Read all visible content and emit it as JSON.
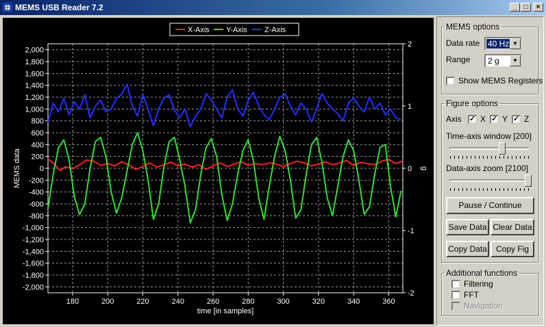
{
  "window": {
    "title": "MEMS USB Reader 7.2",
    "minimize": "_",
    "maximize": "□",
    "close": "×"
  },
  "mems_options": {
    "group_label": "MEMS options",
    "data_rate_label": "Data rate",
    "data_rate_value": "40 Hz",
    "range_label": "Range",
    "range_value": "2 g",
    "show_registers_label": "Show MEMS Registers",
    "show_registers_checked": false
  },
  "figure_options": {
    "group_label": "Figure options",
    "axis_label": "Axis",
    "x_label": "X",
    "y_label": "Y",
    "z_label": "Z",
    "x_checked": true,
    "y_checked": true,
    "z_checked": true,
    "time_window_label": "Time-axis window [200]",
    "time_window_value": 200,
    "zoom_label": "Data-axis zoom [2100]",
    "zoom_value": 2100,
    "pause_button": "Pause / Continue",
    "save_button": "Save Data",
    "clear_button": "Clear Data",
    "copy_data_button": "Copy Data",
    "copy_fig_button": "Copy Fig"
  },
  "additional": {
    "group_label": "Additional functions",
    "filtering_label": "Filtering",
    "fft_label": "FFT",
    "navigation_label": "Navigation"
  },
  "chart_data": {
    "type": "line",
    "xlabel": "time [in samples]",
    "ylabel": "MEMS data",
    "y2label": "g",
    "xlim": [
      166,
      368
    ],
    "ylim": [
      -2100,
      2100
    ],
    "y2lim": [
      -2,
      2
    ],
    "xticks": [
      180,
      200,
      220,
      240,
      260,
      280,
      300,
      320,
      340,
      360
    ],
    "yticks": [
      2000,
      1800,
      1600,
      1400,
      1200,
      1000,
      800,
      600,
      400,
      200,
      0,
      -200,
      -400,
      -600,
      -800,
      -1000,
      -1200,
      -1400,
      -1600,
      -1800,
      -2000
    ],
    "ytick_labels": [
      "2,000",
      "1,800",
      "1,600",
      "1,400",
      "1,200",
      "1,000",
      "800",
      "600",
      "400",
      "200",
      "0",
      "-200",
      "-400",
      "-600",
      "-800",
      "-1,000",
      "-1,200",
      "-1,400",
      "-1,600",
      "-1,800",
      "-2,000"
    ],
    "y2ticks": [
      2,
      1,
      0,
      -1,
      -2
    ],
    "grid": true,
    "legend_position": "top-center",
    "series": [
      {
        "name": "X-Axis",
        "color": "#ff2020",
        "x": [
          166,
          170,
          173,
          176,
          180,
          184,
          188,
          192,
          196,
          200,
          204,
          208,
          212,
          216,
          220,
          224,
          228,
          232,
          236,
          240,
          244,
          248,
          252,
          256,
          260,
          264,
          268,
          272,
          276,
          280,
          284,
          288,
          292,
          296,
          300,
          304,
          308,
          312,
          316,
          320,
          324,
          328,
          332,
          336,
          340,
          344,
          348,
          352,
          356,
          360,
          364,
          368
        ],
        "y": [
          160,
          60,
          -40,
          30,
          -10,
          60,
          140,
          120,
          50,
          80,
          40,
          110,
          60,
          -20,
          30,
          90,
          20,
          60,
          100,
          40,
          70,
          20,
          60,
          -20,
          40,
          90,
          30,
          70,
          110,
          50,
          80,
          60,
          90,
          70,
          30,
          80,
          120,
          90,
          40,
          70,
          110,
          60,
          90,
          130,
          50,
          100,
          80,
          60,
          120,
          150,
          80,
          120
        ]
      },
      {
        "name": "Y-Axis",
        "color": "#30e030",
        "x": [
          166,
          169,
          172,
          175,
          178,
          181,
          184,
          187,
          190,
          193,
          196,
          199,
          202,
          205,
          208,
          211,
          214,
          217,
          220,
          223,
          226,
          229,
          232,
          235,
          238,
          241,
          244,
          247,
          250,
          253,
          256,
          259,
          262,
          265,
          268,
          271,
          274,
          277,
          280,
          283,
          286,
          289,
          292,
          295,
          298,
          301,
          304,
          307,
          310,
          313,
          316,
          319,
          322,
          325,
          328,
          331,
          334,
          337,
          340,
          343,
          346,
          349,
          352,
          355,
          358,
          361,
          364,
          367
        ],
        "y": [
          -680,
          -100,
          350,
          480,
          150,
          -480,
          -780,
          -600,
          0,
          450,
          520,
          200,
          -400,
          -760,
          -500,
          -50,
          400,
          600,
          300,
          -200,
          -860,
          -600,
          20,
          450,
          520,
          150,
          -300,
          -920,
          -700,
          -100,
          350,
          500,
          200,
          -450,
          -880,
          -600,
          -100,
          300,
          480,
          120,
          -500,
          -860,
          -300,
          200,
          540,
          300,
          -200,
          -840,
          -700,
          -100,
          400,
          520,
          100,
          -500,
          -800,
          -300,
          200,
          480,
          300,
          -200,
          -780,
          -650,
          -100,
          350,
          400,
          -300,
          -820,
          -380
        ]
      },
      {
        "name": "Z-Axis",
        "color": "#2030ff",
        "x": [
          166,
          169,
          172,
          175,
          178,
          181,
          184,
          187,
          190,
          193,
          196,
          199,
          202,
          205,
          208,
          211,
          214,
          217,
          220,
          223,
          226,
          229,
          232,
          235,
          238,
          241,
          244,
          247,
          250,
          253,
          256,
          259,
          262,
          265,
          268,
          271,
          274,
          277,
          280,
          283,
          286,
          289,
          292,
          295,
          298,
          301,
          304,
          307,
          310,
          313,
          316,
          319,
          322,
          325,
          328,
          331,
          334,
          337,
          340,
          343,
          346,
          349,
          352,
          355,
          358,
          361,
          364,
          367
        ],
        "y": [
          780,
          1100,
          950,
          1180,
          900,
          1120,
          1000,
          1240,
          850,
          1050,
          1150,
          950,
          1000,
          1180,
          1250,
          1420,
          1050,
          880,
          1250,
          1000,
          720,
          1000,
          1180,
          1240,
          980,
          850,
          1000,
          700,
          880,
          1000,
          1260,
          1150,
          1000,
          850,
          1200,
          1320,
          1000,
          880,
          1150,
          1280,
          1050,
          900,
          820,
          1000,
          1200,
          1250,
          1050,
          900,
          1100,
          1000,
          780,
          1000,
          1260,
          1100,
          1000,
          920,
          800,
          1100,
          1180,
          1050,
          950,
          1200,
          1000,
          1100,
          900,
          1000,
          850,
          820
        ]
      }
    ]
  }
}
